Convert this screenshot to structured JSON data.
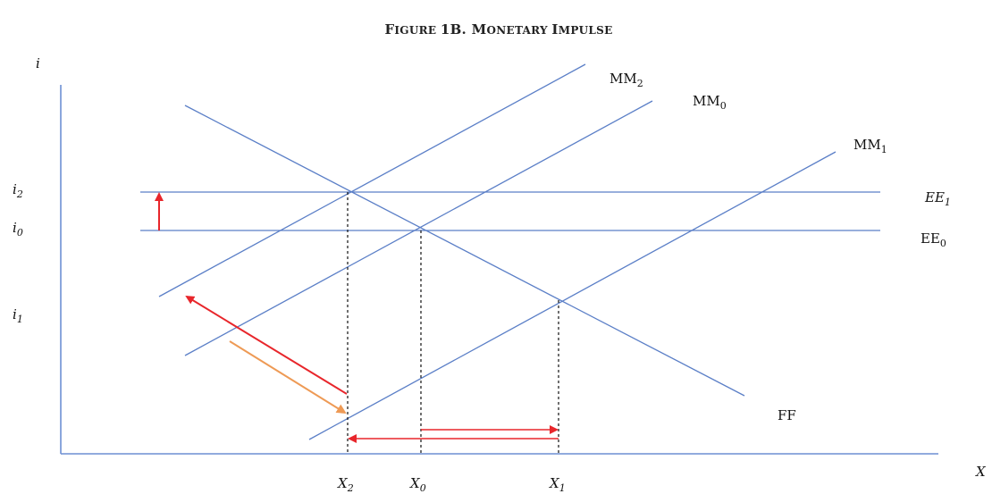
{
  "title": {
    "main": "FIGURE 1B. MONETARY IMPULSE",
    "parts": [
      {
        "big": "F",
        "small": "IGURE "
      },
      {
        "big": "1B. M",
        "small": "ONETARY "
      },
      {
        "big": "I",
        "small": "MPULSE"
      }
    ]
  },
  "axes": {
    "y_label": "i",
    "x_label": "X"
  },
  "curves": {
    "mm2": {
      "name": "MM",
      "sub": "2"
    },
    "mm0": {
      "name": "MM",
      "sub": "0"
    },
    "mm1": {
      "name": "MM",
      "sub": "1"
    },
    "ee1": {
      "name": "EE",
      "sub": "1"
    },
    "ee0": {
      "name": "EE",
      "sub": "0"
    },
    "ff": {
      "name": "FF"
    }
  },
  "y_ticks": {
    "i2": {
      "name": "i",
      "sub": "2"
    },
    "i0": {
      "name": "i",
      "sub": "0"
    },
    "i1": {
      "name": "i",
      "sub": "1"
    }
  },
  "x_ticks": {
    "x2": {
      "name": "X",
      "sub": "2"
    },
    "x0": {
      "name": "X",
      "sub": "0"
    },
    "x1": {
      "name": "X",
      "sub": "1"
    }
  },
  "colors": {
    "line": "#5b7fc7",
    "axis": "#6d8fd4",
    "red_arrow": "#e8262b",
    "orange_arrow": "#ee9a55",
    "dashed": "#111111"
  }
}
